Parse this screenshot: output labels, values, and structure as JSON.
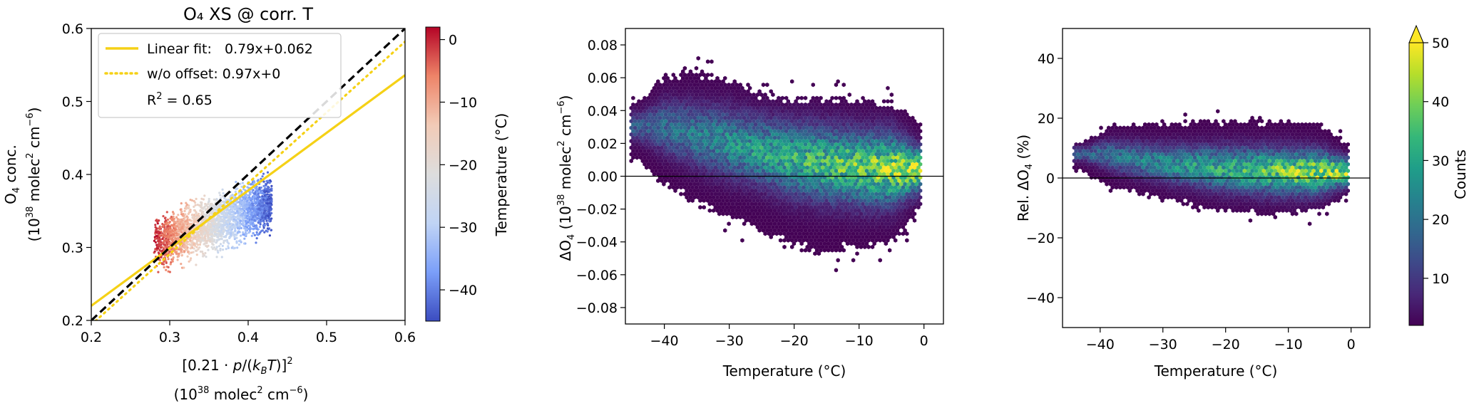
{
  "chart_data": [
    {
      "id": "scatter",
      "type": "scatter",
      "title": "O₄ XS @ corr. T",
      "xlabel_line1": "[0.21 · p/(kʙT)]²",
      "xlabel_line2": "(10³⁸ molec² cm⁻⁶)",
      "ylabel_line1": "O₄ conc.",
      "ylabel_line2": "(10³⁸ molec² cm⁻⁶)",
      "xlim": [
        0.2,
        0.6
      ],
      "ylim": [
        0.2,
        0.6
      ],
      "xticks": [
        "0.2",
        "0.3",
        "0.4",
        "0.5",
        "0.6"
      ],
      "yticks": [
        "0.2",
        "0.3",
        "0.4",
        "0.5",
        "0.6"
      ],
      "color_by": "Temperature",
      "cloud": {
        "x_range": [
          0.28,
          0.43
        ],
        "y_center_at_x": [
          [
            0.28,
            0.305
          ],
          [
            0.43,
            0.36
          ]
        ],
        "y_spread": 0.04,
        "temperature_at_x": [
          [
            0.28,
            0.0
          ],
          [
            0.43,
            -44.0
          ]
        ],
        "count": 2600
      },
      "lines": [
        {
          "label": "Linear fit:   0.79x+0.062",
          "slope": 0.79,
          "intercept": 0.062,
          "style": "solid",
          "color": "#f5d116"
        },
        {
          "label": "w/o offset: 0.97x+0",
          "slope": 0.97,
          "intercept": 0.0,
          "style": "dotted",
          "color": "#f5d116"
        },
        {
          "label": "",
          "slope": 1.0,
          "intercept": 0.0,
          "style": "dashed",
          "color": "#000000"
        }
      ],
      "r2_label": "R² = 0.65",
      "legend_position": "top-left"
    },
    {
      "id": "temp-colorbar",
      "type": "colorbar",
      "label": "Temperature (°C)",
      "range": [
        -45,
        2
      ],
      "ticks": [
        "0",
        "−10",
        "−20",
        "−30",
        "−40"
      ],
      "tick_values": [
        0,
        -10,
        -20,
        -30,
        -40
      ],
      "colormap": [
        "#3b4cc0",
        "#7b9ff9",
        "#c0d4f5",
        "#dddddd",
        "#f2cbb7",
        "#ee8468",
        "#b40426"
      ]
    },
    {
      "id": "hexbin-abs",
      "type": "heatmap",
      "xlabel": "Temperature (°C)",
      "ylabel": "ΔO₄ (10³⁸ molec² cm⁻⁶)",
      "xlim": [
        -46,
        3
      ],
      "ylim": [
        -0.09,
        0.09
      ],
      "xticks": [
        "−40",
        "−30",
        "−20",
        "−10",
        "0"
      ],
      "xtick_values": [
        -40,
        -30,
        -20,
        -10,
        0
      ],
      "yticks": [
        "−0.08",
        "−0.06",
        "−0.04",
        "−0.02",
        "0.00",
        "0.02",
        "0.04",
        "0.06",
        "0.08"
      ],
      "ytick_values": [
        -0.08,
        -0.06,
        -0.04,
        -0.02,
        0.0,
        0.02,
        0.04,
        0.06,
        0.08
      ],
      "zero_line": 0,
      "envelope": [
        {
          "t": -44,
          "lo": 0.01,
          "hi": 0.045
        },
        {
          "t": -40,
          "lo": -0.005,
          "hi": 0.06
        },
        {
          "t": -35,
          "lo": -0.015,
          "hi": 0.063
        },
        {
          "t": -30,
          "lo": -0.025,
          "hi": 0.058
        },
        {
          "t": -25,
          "lo": -0.033,
          "hi": 0.05
        },
        {
          "t": -20,
          "lo": -0.043,
          "hi": 0.047
        },
        {
          "t": -15,
          "lo": -0.045,
          "hi": 0.046
        },
        {
          "t": -10,
          "lo": -0.043,
          "hi": 0.046
        },
        {
          "t": -5,
          "lo": -0.042,
          "hi": 0.045
        },
        {
          "t": -1,
          "lo": -0.02,
          "hi": 0.035
        }
      ],
      "center": [
        {
          "t": -40,
          "y": 0.03
        },
        {
          "t": -30,
          "y": 0.02
        },
        {
          "t": -20,
          "y": 0.01
        },
        {
          "t": -10,
          "y": 0.005
        },
        {
          "t": -2,
          "y": 0.004
        }
      ]
    },
    {
      "id": "hexbin-rel",
      "type": "heatmap",
      "xlabel": "Temperature (°C)",
      "ylabel": "Rel. ΔO₄ (%)",
      "xlim": [
        -46,
        3
      ],
      "ylim": [
        -50,
        50
      ],
      "xticks": [
        "−40",
        "−30",
        "−20",
        "−10",
        "0"
      ],
      "xtick_values": [
        -40,
        -30,
        -20,
        -10,
        0
      ],
      "yticks": [
        "−40",
        "−20",
        "0",
        "20",
        "40"
      ],
      "ytick_values": [
        -40,
        -20,
        0,
        20,
        40
      ],
      "zero_line": 0,
      "envelope": [
        {
          "t": -43,
          "lo": 2,
          "hi": 12
        },
        {
          "t": -38,
          "lo": -3,
          "hi": 18
        },
        {
          "t": -30,
          "lo": -7,
          "hi": 18
        },
        {
          "t": -20,
          "lo": -11,
          "hi": 19
        },
        {
          "t": -15,
          "lo": -12,
          "hi": 19
        },
        {
          "t": -10,
          "lo": -12,
          "hi": 19
        },
        {
          "t": -5,
          "lo": -11,
          "hi": 18
        },
        {
          "t": -1,
          "lo": -6,
          "hi": 12
        }
      ],
      "center": [
        {
          "t": -40,
          "y": 8
        },
        {
          "t": -30,
          "y": 5
        },
        {
          "t": -20,
          "y": 3
        },
        {
          "t": -10,
          "y": 2
        },
        {
          "t": -2,
          "y": 2
        }
      ]
    },
    {
      "id": "counts-colorbar",
      "type": "colorbar",
      "label": "Counts",
      "range": [
        2,
        50
      ],
      "ticks": [
        "10",
        "20",
        "30",
        "40",
        "50"
      ],
      "tick_values": [
        10,
        20,
        30,
        40,
        50
      ],
      "extend": "max",
      "colormap": [
        "#440154",
        "#482878",
        "#3e4989",
        "#31688e",
        "#26828e",
        "#1f9e89",
        "#35b779",
        "#6ece58",
        "#b5de2b",
        "#fde725"
      ]
    }
  ]
}
